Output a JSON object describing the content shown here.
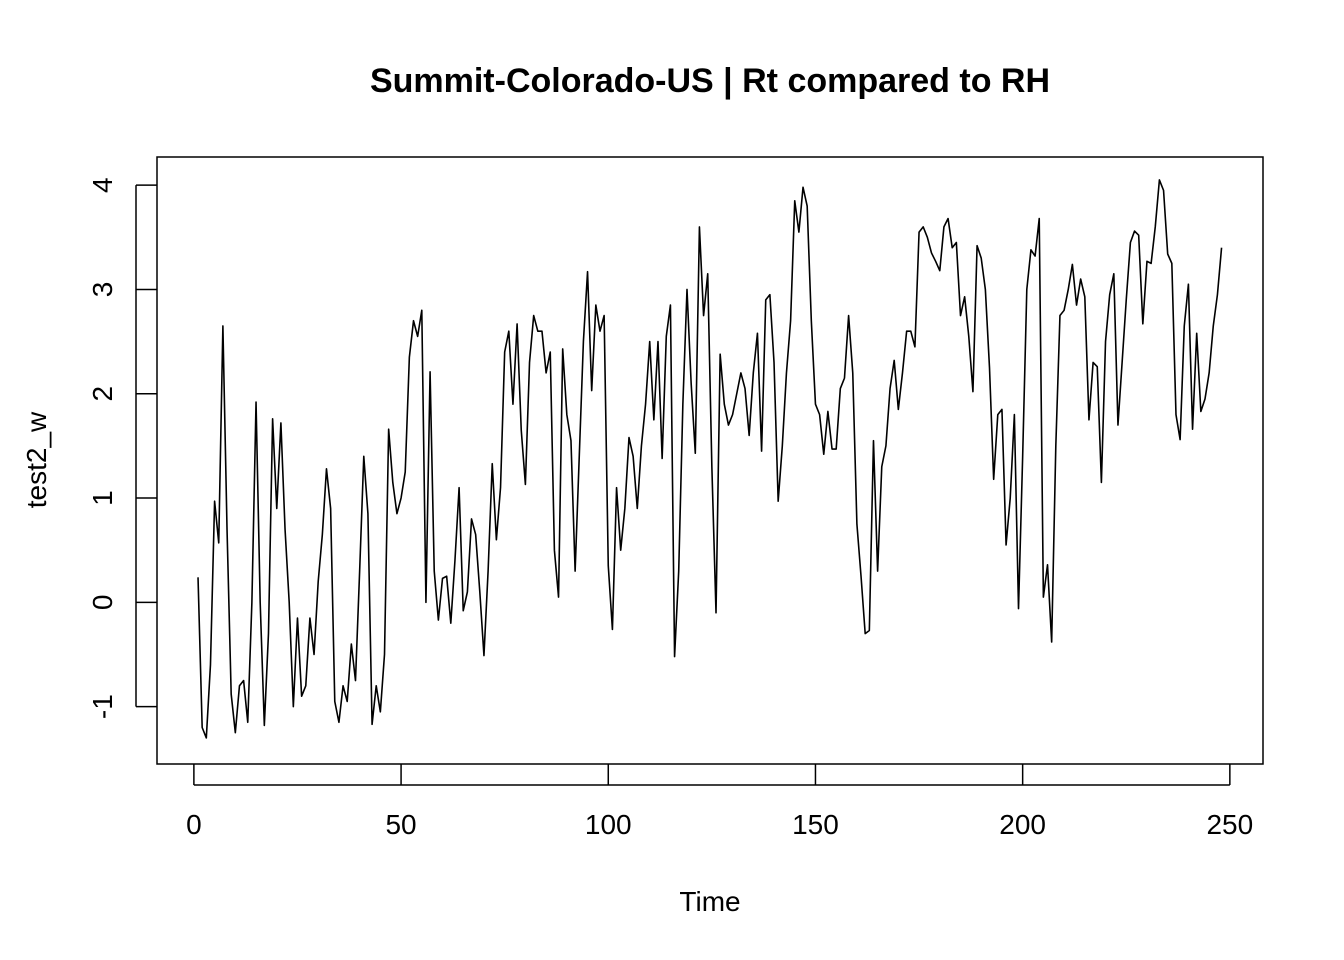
{
  "chart_data": {
    "type": "line",
    "title": "Summit-Colorado-US | Rt compared to RH",
    "xlabel": "Time",
    "ylabel": "test2_w",
    "xlim": [
      -8.9,
      258
    ],
    "ylim": [
      -1.55,
      4.27
    ],
    "x_ticks": [
      0,
      50,
      100,
      150,
      200,
      250
    ],
    "x_tick_labels": [
      "0",
      "50",
      "100",
      "150",
      "200",
      "250"
    ],
    "y_ticks": [
      -1,
      0,
      1,
      2,
      3,
      4
    ],
    "y_tick_labels": [
      "-1",
      "0",
      "1",
      "2",
      "3",
      "4"
    ],
    "grid": false,
    "legend": "none",
    "line_color": "#000000",
    "series": [
      {
        "x_start": 1,
        "x_step": 1,
        "values": [
          0.24,
          -1.2,
          -1.3,
          -0.6,
          0.97,
          0.57,
          2.65,
          0.7,
          -0.88,
          -1.25,
          -0.8,
          -0.75,
          -1.15,
          0.0,
          1.92,
          0.0,
          -1.18,
          -0.3,
          1.76,
          0.9,
          1.72,
          0.7,
          0.0,
          -1.0,
          -0.15,
          -0.9,
          -0.8,
          -0.15,
          -0.5,
          0.2,
          0.65,
          1.28,
          0.9,
          -0.95,
          -1.15,
          -0.8,
          -0.95,
          -0.4,
          -0.75,
          0.3,
          1.4,
          0.85,
          -1.17,
          -0.8,
          -1.05,
          -0.5,
          1.66,
          1.15,
          0.85,
          1.0,
          1.25,
          2.35,
          2.7,
          2.55,
          2.8,
          0.0,
          2.21,
          0.3,
          -0.17,
          0.23,
          0.25,
          -0.2,
          0.4,
          1.1,
          -0.08,
          0.1,
          0.8,
          0.65,
          0.1,
          -0.51,
          0.3,
          1.33,
          0.6,
          1.1,
          2.4,
          2.6,
          1.9,
          2.67,
          1.65,
          1.13,
          2.3,
          2.75,
          2.6,
          2.6,
          2.2,
          2.4,
          0.5,
          0.05,
          2.43,
          1.8,
          1.55,
          0.3,
          1.4,
          2.5,
          3.17,
          2.03,
          2.85,
          2.6,
          2.75,
          0.35,
          -0.26,
          1.1,
          0.5,
          0.9,
          1.58,
          1.4,
          0.9,
          1.5,
          1.9,
          2.5,
          1.75,
          2.5,
          1.38,
          2.55,
          2.85,
          -0.52,
          0.3,
          1.9,
          3.0,
          2.1,
          1.43,
          3.6,
          2.75,
          3.15,
          1.3,
          -0.1,
          2.38,
          1.9,
          1.7,
          1.8,
          2.0,
          2.2,
          2.05,
          1.6,
          2.2,
          2.58,
          1.45,
          2.9,
          2.95,
          2.3,
          0.97,
          1.5,
          2.2,
          2.7,
          3.85,
          3.55,
          3.98,
          3.8,
          2.7,
          1.9,
          1.8,
          1.42,
          1.83,
          1.47,
          1.47,
          2.05,
          2.15,
          2.75,
          2.2,
          0.75,
          0.25,
          -0.3,
          -0.27,
          1.55,
          0.3,
          1.3,
          1.5,
          2.05,
          2.32,
          1.85,
          2.2,
          2.6,
          2.6,
          2.45,
          3.55,
          3.6,
          3.5,
          3.35,
          3.27,
          3.18,
          3.6,
          3.68,
          3.4,
          3.45,
          2.75,
          2.93,
          2.55,
          2.02,
          3.42,
          3.3,
          3.0,
          2.25,
          1.18,
          1.8,
          1.85,
          0.55,
          1.0,
          1.8,
          -0.06,
          1.4,
          3.0,
          3.38,
          3.32,
          3.68,
          0.05,
          0.36,
          -0.38,
          1.5,
          2.75,
          2.8,
          3.0,
          3.24,
          2.85,
          3.1,
          2.93,
          1.75,
          2.3,
          2.26,
          1.15,
          2.5,
          2.95,
          3.15,
          1.7,
          2.3,
          2.9,
          3.45,
          3.56,
          3.52,
          2.67,
          3.27,
          3.25,
          3.6,
          4.05,
          3.95,
          3.34,
          3.25,
          1.8,
          1.56,
          2.65,
          3.05,
          1.66,
          2.58,
          1.83,
          1.95,
          2.2,
          2.65,
          2.95,
          3.4
        ]
      }
    ]
  }
}
